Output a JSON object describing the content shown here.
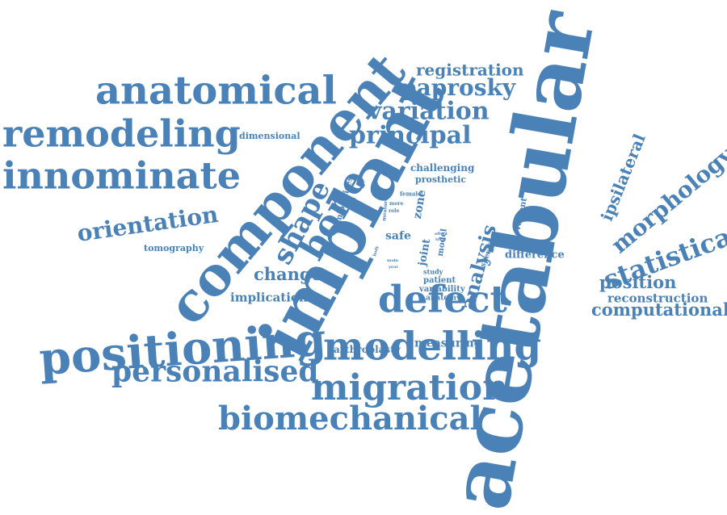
{
  "color": "#4a82b8",
  "words": [
    {
      "text": "acetabular",
      "weight": 100
    },
    {
      "text": "implant",
      "weight": 92
    },
    {
      "text": "component",
      "weight": 80
    },
    {
      "text": "positioning",
      "weight": 70
    },
    {
      "text": "anatomical",
      "weight": 66
    },
    {
      "text": "modelling",
      "weight": 64
    },
    {
      "text": "innominate",
      "weight": 62
    },
    {
      "text": "remodeling",
      "weight": 62
    },
    {
      "text": "migration",
      "weight": 60
    },
    {
      "text": "defect",
      "weight": 58
    },
    {
      "text": "biomechanical",
      "weight": 56
    },
    {
      "text": "bone",
      "weight": 56
    },
    {
      "text": "personalised",
      "weight": 48
    },
    {
      "text": "shape",
      "weight": 44
    },
    {
      "text": "statistical",
      "weight": 42
    },
    {
      "text": "morphology",
      "weight": 40
    },
    {
      "text": "variation",
      "weight": 38
    },
    {
      "text": "principal",
      "weight": 38
    },
    {
      "text": "paprosky",
      "weight": 38
    },
    {
      "text": "orientation",
      "weight": 34
    },
    {
      "text": "analysis",
      "weight": 32
    },
    {
      "text": "registration",
      "weight": 28
    },
    {
      "text": "computational",
      "weight": 28
    },
    {
      "text": "position",
      "weight": 28
    },
    {
      "text": "change",
      "weight": 28
    },
    {
      "text": "ipsilateral",
      "weight": 26
    },
    {
      "text": "reconstruction",
      "weight": 22
    },
    {
      "text": "implication",
      "weight": 20
    },
    {
      "text": "measuring",
      "weight": 18
    },
    {
      "text": "difference",
      "weight": 16
    },
    {
      "text": "arthroplasty",
      "weight": 16
    },
    {
      "text": "hemipelvises",
      "weight": 16
    },
    {
      "text": "joint",
      "weight": 16
    },
    {
      "text": "safe",
      "weight": 16
    },
    {
      "text": "zone",
      "weight": 16
    },
    {
      "text": "challenging",
      "weight": 14
    },
    {
      "text": "tomography",
      "weight": 14
    },
    {
      "text": "dimensional",
      "weight": 14
    },
    {
      "text": "prosthetic",
      "weight": 12
    },
    {
      "text": "patient",
      "weight": 12
    },
    {
      "text": "variability",
      "weight": 12
    },
    {
      "text": "anatomy",
      "weight": 12
    },
    {
      "text": "study",
      "weight": 10
    },
    {
      "text": "movement",
      "weight": 10
    },
    {
      "text": "specific",
      "weight": 10
    },
    {
      "text": "model",
      "weight": 10
    },
    {
      "text": "female",
      "weight": 8
    },
    {
      "text": "measure",
      "weight": 8
    },
    {
      "text": "more",
      "weight": 8
    },
    {
      "text": "role",
      "weight": 8
    },
    {
      "text": "body",
      "weight": 6
    },
    {
      "text": "main",
      "weight": 6
    },
    {
      "text": "year",
      "weight": 6
    },
    {
      "text": "effect",
      "weight": 6
    },
    {
      "text": "total",
      "weight": 6
    }
  ]
}
